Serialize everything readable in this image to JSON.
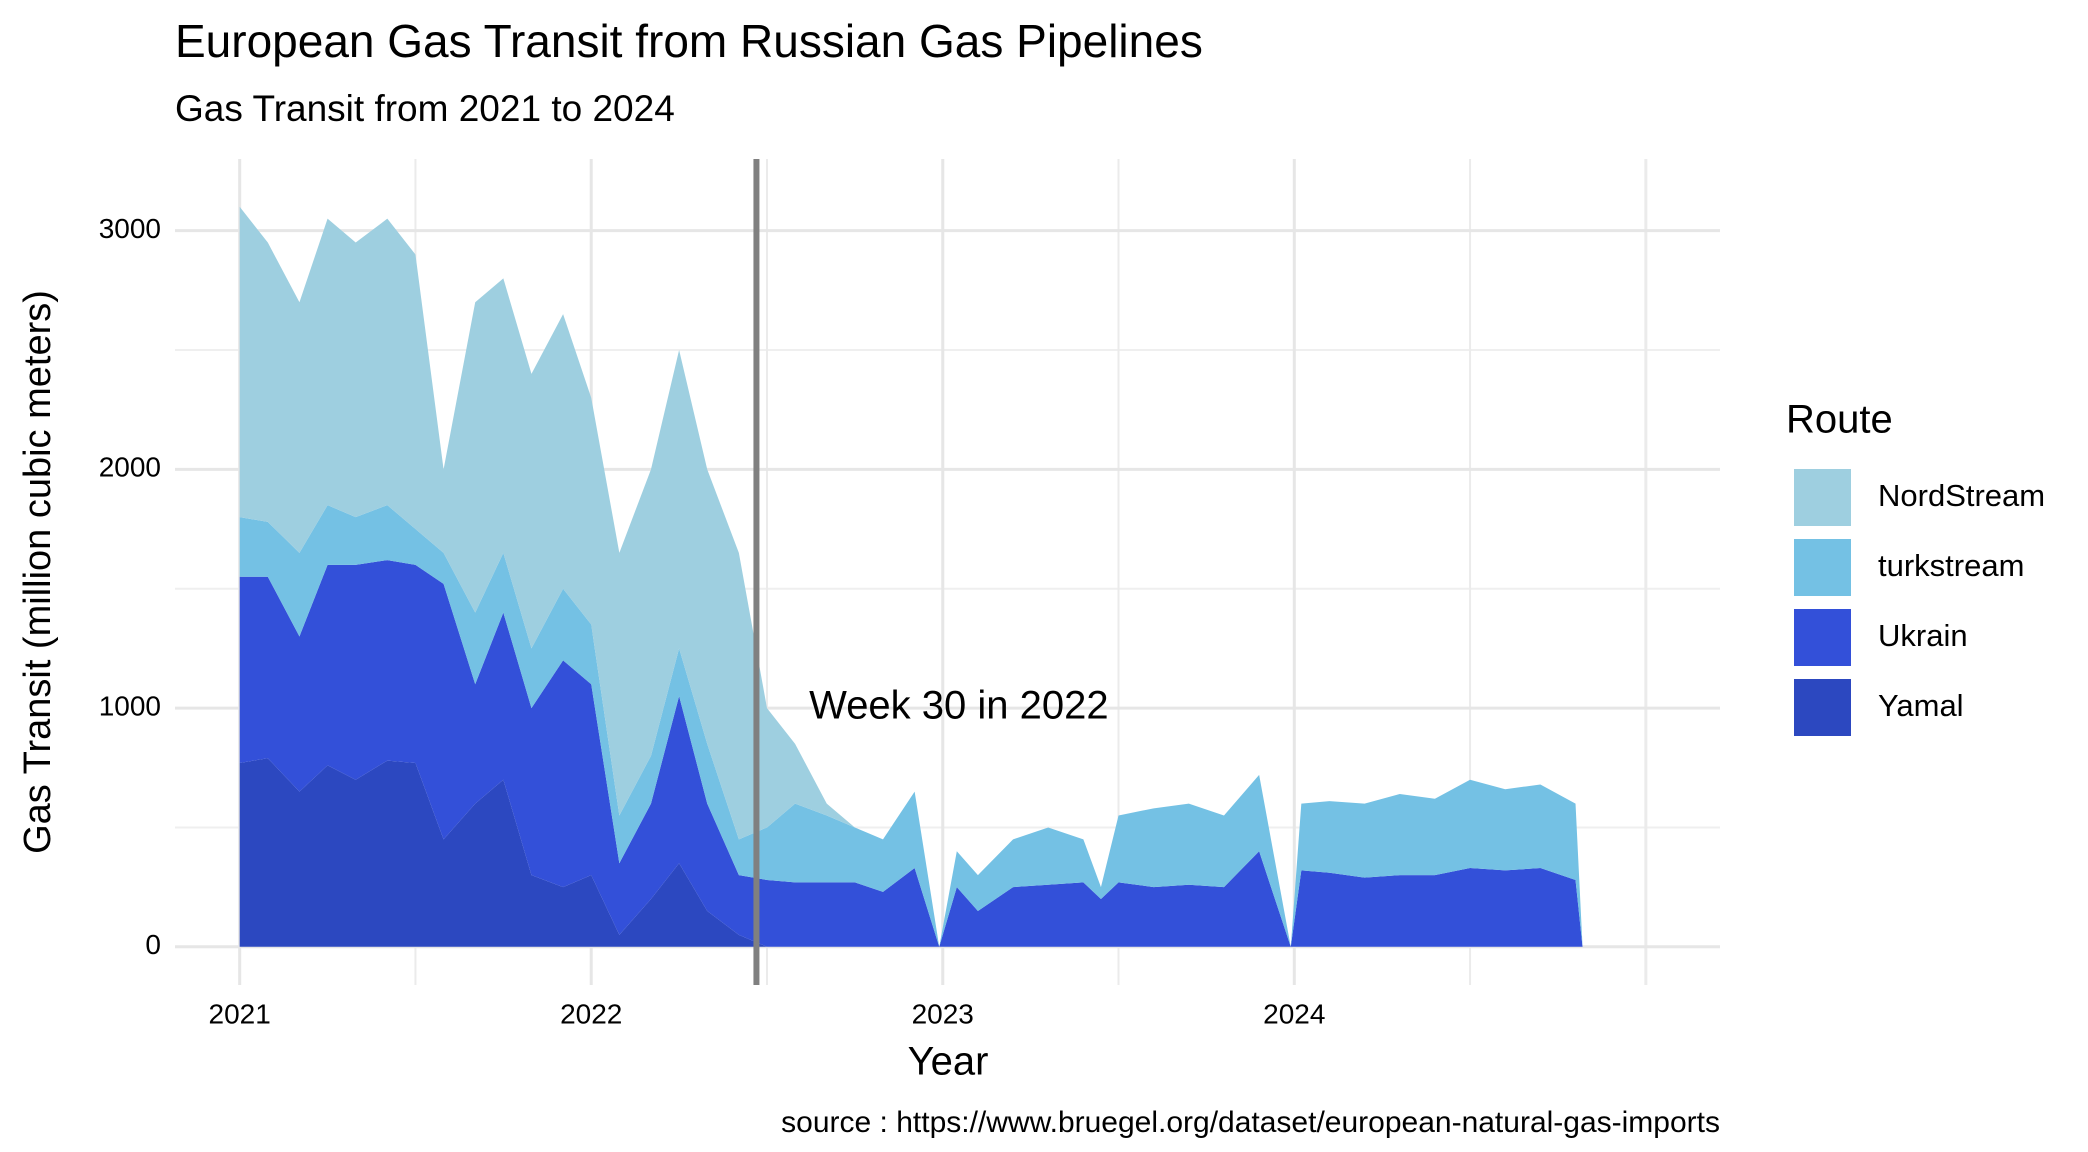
{
  "chart_data": {
    "type": "area",
    "stacked": true,
    "title": "European Gas Transit from Russian Gas Pipelines",
    "subtitle": "Gas Transit from 2021 to 2024",
    "x_label": "Year",
    "y_label": "Gas Transit (million cubic meters)",
    "legend_title": "Route",
    "legend": "right",
    "caption": "source : https://www.bruegel.org/dataset/european-natural-gas-imports",
    "vline": 2022.47,
    "annotation": {
      "text": "Week 30 in 2022",
      "x": 2022.62,
      "y": 1000
    },
    "x": [
      2021.0,
      2021.08,
      2021.17,
      2021.25,
      2021.33,
      2021.42,
      2021.5,
      2021.58,
      2021.67,
      2021.75,
      2021.83,
      2021.92,
      2022.0,
      2022.08,
      2022.17,
      2022.25,
      2022.33,
      2022.42,
      2022.5,
      2022.58,
      2022.67,
      2022.75,
      2022.83,
      2022.92,
      2022.99,
      2023.04,
      2023.1,
      2023.2,
      2023.3,
      2023.4,
      2023.45,
      2023.5,
      2023.6,
      2023.7,
      2023.8,
      2023.9,
      2023.99,
      2024.02,
      2024.1,
      2024.2,
      2024.3,
      2024.4,
      2024.5,
      2024.6,
      2024.7,
      2024.8,
      2024.82
    ],
    "series": [
      {
        "name": "NordStream",
        "color": "#9ecfe0",
        "values": [
          1300,
          1170,
          1050,
          1200,
          1150,
          1200,
          1150,
          350,
          1300,
          1150,
          1150,
          1150,
          950,
          1100,
          1200,
          1250,
          1150,
          1200,
          500,
          250,
          50,
          0,
          0,
          0,
          0,
          0,
          0,
          0,
          0,
          0,
          0,
          0,
          0,
          0,
          0,
          0,
          0,
          0,
          0,
          0,
          0,
          0,
          0,
          0,
          0,
          0,
          0
        ]
      },
      {
        "name": "turkstream",
        "color": "#74c1e4",
        "values": [
          250,
          230,
          350,
          250,
          200,
          230,
          150,
          130,
          300,
          250,
          250,
          300,
          250,
          200,
          200,
          200,
          250,
          150,
          220,
          330,
          280,
          230,
          220,
          320,
          0,
          150,
          150,
          200,
          240,
          180,
          50,
          280,
          330,
          340,
          300,
          320,
          0,
          280,
          300,
          310,
          340,
          320,
          370,
          340,
          350,
          320,
          0
        ]
      },
      {
        "name": "Ukrain",
        "color": "#3350d9",
        "values": [
          780,
          760,
          650,
          840,
          900,
          840,
          830,
          1070,
          500,
          700,
          700,
          950,
          800,
          300,
          400,
          700,
          450,
          250,
          280,
          270,
          270,
          270,
          230,
          330,
          0,
          250,
          150,
          250,
          260,
          270,
          200,
          270,
          250,
          260,
          250,
          400,
          0,
          320,
          310,
          290,
          300,
          300,
          330,
          320,
          330,
          280,
          0
        ]
      },
      {
        "name": "Yamal",
        "color": "#2c48c0",
        "values": [
          770,
          790,
          650,
          760,
          700,
          780,
          770,
          450,
          600,
          700,
          300,
          250,
          300,
          50,
          200,
          350,
          150,
          50,
          0,
          0,
          0,
          0,
          0,
          0,
          0,
          0,
          0,
          0,
          0,
          0,
          0,
          0,
          0,
          0,
          0,
          0,
          0,
          0,
          0,
          0,
          0,
          0,
          0,
          0,
          0,
          0,
          0
        ]
      }
    ],
    "xlim": [
      2020.816,
      2025.211
    ],
    "xticks": [
      2021,
      2022,
      2023,
      2024
    ],
    "ylim": [
      -160,
      3300
    ],
    "yticks": [
      0,
      1000,
      2000,
      3000
    ],
    "grid": true
  }
}
